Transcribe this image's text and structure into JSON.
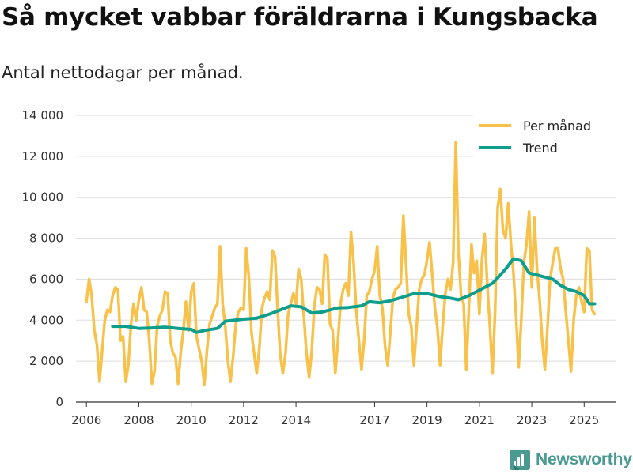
{
  "title": "Så mycket vabbar föräldrarna i Kungsbacka",
  "subtitle": "Antal nettodagar per månad.",
  "brand": "Newsworthy",
  "colors": {
    "per_month": "#f8c14a",
    "trend": "#0e9e8c",
    "grid": "#dddddd",
    "brand": "#4a9a92"
  },
  "chart_data": {
    "type": "line",
    "title": "Så mycket vabbar föräldrarna i Kungsbacka",
    "subtitle": "Antal nettodagar per månad.",
    "xlabel": "",
    "ylabel": "",
    "xlim": [
      2005.6,
      2026.2
    ],
    "ylim": [
      0,
      14000
    ],
    "grid": true,
    "legend_position": "top-right",
    "y_ticks": [
      {
        "value": 0,
        "label": "0"
      },
      {
        "value": 2000,
        "label": "2 000"
      },
      {
        "value": 4000,
        "label": "4 000"
      },
      {
        "value": 6000,
        "label": "6 000"
      },
      {
        "value": 8000,
        "label": "8 000"
      },
      {
        "value": 10000,
        "label": "10 000"
      },
      {
        "value": 12000,
        "label": "12 000"
      },
      {
        "value": 14000,
        "label": "14 000"
      }
    ],
    "x_ticks": [
      {
        "value": 2006,
        "label": "2006"
      },
      {
        "value": 2008,
        "label": "2008"
      },
      {
        "value": 2010,
        "label": "2010"
      },
      {
        "value": 2012,
        "label": "2012"
      },
      {
        "value": 2014,
        "label": "2014"
      },
      {
        "value": 2017,
        "label": "2017"
      },
      {
        "value": 2019,
        "label": "2019"
      },
      {
        "value": 2021,
        "label": "2021"
      },
      {
        "value": 2023,
        "label": "2023"
      },
      {
        "value": 2025,
        "label": "2025"
      }
    ],
    "series": [
      {
        "name": "Per månad",
        "color": "#f8c14a",
        "points": [
          [
            2006.0,
            4900
          ],
          [
            2006.1,
            6000
          ],
          [
            2006.2,
            5200
          ],
          [
            2006.3,
            3500
          ],
          [
            2006.4,
            2800
          ],
          [
            2006.5,
            1000
          ],
          [
            2006.6,
            2500
          ],
          [
            2006.7,
            4000
          ],
          [
            2006.8,
            4500
          ],
          [
            2006.9,
            4400
          ],
          [
            2007.0,
            5200
          ],
          [
            2007.1,
            5600
          ],
          [
            2007.2,
            5500
          ],
          [
            2007.3,
            3000
          ],
          [
            2007.4,
            3200
          ],
          [
            2007.5,
            1000
          ],
          [
            2007.6,
            1800
          ],
          [
            2007.7,
            3800
          ],
          [
            2007.8,
            4800
          ],
          [
            2007.9,
            4000
          ],
          [
            2008.0,
            5000
          ],
          [
            2008.1,
            5600
          ],
          [
            2008.2,
            4500
          ],
          [
            2008.3,
            4400
          ],
          [
            2008.4,
            3000
          ],
          [
            2008.5,
            900
          ],
          [
            2008.6,
            1500
          ],
          [
            2008.7,
            3700
          ],
          [
            2008.8,
            4200
          ],
          [
            2008.9,
            4500
          ],
          [
            2009.0,
            5400
          ],
          [
            2009.1,
            5300
          ],
          [
            2009.2,
            3000
          ],
          [
            2009.3,
            2400
          ],
          [
            2009.4,
            2200
          ],
          [
            2009.5,
            900
          ],
          [
            2009.6,
            2400
          ],
          [
            2009.7,
            3500
          ],
          [
            2009.8,
            4900
          ],
          [
            2009.9,
            3500
          ],
          [
            2010.0,
            5400
          ],
          [
            2010.1,
            5800
          ],
          [
            2010.2,
            3200
          ],
          [
            2010.3,
            2600
          ],
          [
            2010.4,
            2000
          ],
          [
            2010.5,
            850
          ],
          [
            2010.6,
            2500
          ],
          [
            2010.7,
            3800
          ],
          [
            2010.8,
            4200
          ],
          [
            2010.9,
            4600
          ],
          [
            2011.0,
            4800
          ],
          [
            2011.1,
            7600
          ],
          [
            2011.2,
            4800
          ],
          [
            2011.3,
            3700
          ],
          [
            2011.4,
            2000
          ],
          [
            2011.5,
            1000
          ],
          [
            2011.6,
            2200
          ],
          [
            2011.7,
            3800
          ],
          [
            2011.8,
            4400
          ],
          [
            2011.9,
            4600
          ],
          [
            2012.0,
            4500
          ],
          [
            2012.1,
            7500
          ],
          [
            2012.2,
            6100
          ],
          [
            2012.3,
            3400
          ],
          [
            2012.4,
            2400
          ],
          [
            2012.5,
            1400
          ],
          [
            2012.6,
            2600
          ],
          [
            2012.7,
            4600
          ],
          [
            2012.8,
            5100
          ],
          [
            2012.9,
            5400
          ],
          [
            2013.0,
            5000
          ],
          [
            2013.1,
            7400
          ],
          [
            2013.2,
            7100
          ],
          [
            2013.3,
            4500
          ],
          [
            2013.4,
            2300
          ],
          [
            2013.5,
            1400
          ],
          [
            2013.6,
            2400
          ],
          [
            2013.7,
            4300
          ],
          [
            2013.8,
            4800
          ],
          [
            2013.9,
            5300
          ],
          [
            2014.0,
            4800
          ],
          [
            2014.1,
            6500
          ],
          [
            2014.2,
            6000
          ],
          [
            2014.3,
            4200
          ],
          [
            2014.4,
            2400
          ],
          [
            2014.5,
            1200
          ],
          [
            2014.6,
            2500
          ],
          [
            2014.7,
            4700
          ],
          [
            2014.8,
            5600
          ],
          [
            2014.9,
            5500
          ],
          [
            2015.0,
            4800
          ],
          [
            2015.1,
            7200
          ],
          [
            2015.2,
            7000
          ],
          [
            2015.3,
            3800
          ],
          [
            2015.4,
            3500
          ],
          [
            2015.5,
            1400
          ],
          [
            2015.6,
            3000
          ],
          [
            2015.7,
            4800
          ],
          [
            2015.8,
            5500
          ],
          [
            2015.9,
            5800
          ],
          [
            2016.0,
            5200
          ],
          [
            2016.1,
            8300
          ],
          [
            2016.2,
            6800
          ],
          [
            2016.3,
            4500
          ],
          [
            2016.4,
            3000
          ],
          [
            2016.5,
            1600
          ],
          [
            2016.6,
            3000
          ],
          [
            2016.7,
            5200
          ],
          [
            2016.8,
            5400
          ],
          [
            2016.9,
            6000
          ],
          [
            2017.0,
            6400
          ],
          [
            2017.1,
            7600
          ],
          [
            2017.2,
            5200
          ],
          [
            2017.3,
            4600
          ],
          [
            2017.4,
            2700
          ],
          [
            2017.5,
            1800
          ],
          [
            2017.6,
            3400
          ],
          [
            2017.7,
            5100
          ],
          [
            2017.8,
            5500
          ],
          [
            2017.9,
            5600
          ],
          [
            2018.0,
            5800
          ],
          [
            2018.1,
            9100
          ],
          [
            2018.2,
            6800
          ],
          [
            2018.3,
            4300
          ],
          [
            2018.4,
            3700
          ],
          [
            2018.5,
            1800
          ],
          [
            2018.6,
            3600
          ],
          [
            2018.7,
            5500
          ],
          [
            2018.8,
            6000
          ],
          [
            2018.9,
            6200
          ],
          [
            2019.0,
            6900
          ],
          [
            2019.1,
            7800
          ],
          [
            2019.2,
            6200
          ],
          [
            2019.3,
            4600
          ],
          [
            2019.4,
            3600
          ],
          [
            2019.5,
            1800
          ],
          [
            2019.6,
            3700
          ],
          [
            2019.7,
            5300
          ],
          [
            2019.8,
            6000
          ],
          [
            2019.9,
            5500
          ],
          [
            2020.0,
            6800
          ],
          [
            2020.1,
            12700
          ],
          [
            2020.2,
            7300
          ],
          [
            2020.3,
            5200
          ],
          [
            2020.4,
            4800
          ],
          [
            2020.5,
            1600
          ],
          [
            2020.6,
            4600
          ],
          [
            2020.7,
            7700
          ],
          [
            2020.8,
            6300
          ],
          [
            2020.9,
            6900
          ],
          [
            2021.0,
            4300
          ],
          [
            2021.1,
            7000
          ],
          [
            2021.2,
            8200
          ],
          [
            2021.3,
            5800
          ],
          [
            2021.4,
            3700
          ],
          [
            2021.5,
            1400
          ],
          [
            2021.6,
            4400
          ],
          [
            2021.7,
            9500
          ],
          [
            2021.8,
            10400
          ],
          [
            2021.9,
            8400
          ],
          [
            2022.0,
            8000
          ],
          [
            2022.1,
            9700
          ],
          [
            2022.2,
            7800
          ],
          [
            2022.3,
            6300
          ],
          [
            2022.4,
            4200
          ],
          [
            2022.5,
            1700
          ],
          [
            2022.6,
            4000
          ],
          [
            2022.7,
            6800
          ],
          [
            2022.8,
            7700
          ],
          [
            2022.9,
            9300
          ],
          [
            2023.0,
            5600
          ],
          [
            2023.1,
            9000
          ],
          [
            2023.2,
            6500
          ],
          [
            2023.3,
            5000
          ],
          [
            2023.4,
            3000
          ],
          [
            2023.5,
            1600
          ],
          [
            2023.6,
            3600
          ],
          [
            2023.7,
            6000
          ],
          [
            2023.8,
            6800
          ],
          [
            2023.9,
            7500
          ],
          [
            2024.0,
            7500
          ],
          [
            2024.1,
            6500
          ],
          [
            2024.2,
            6000
          ],
          [
            2024.3,
            4400
          ],
          [
            2024.4,
            3000
          ],
          [
            2024.5,
            1500
          ],
          [
            2024.6,
            4000
          ],
          [
            2024.7,
            5200
          ],
          [
            2024.8,
            5600
          ],
          [
            2024.9,
            4900
          ],
          [
            2025.0,
            4400
          ],
          [
            2025.1,
            7500
          ],
          [
            2025.2,
            7400
          ],
          [
            2025.3,
            4500
          ],
          [
            2025.4,
            4300
          ]
        ]
      },
      {
        "name": "Trend",
        "color": "#0e9e8c",
        "points": [
          [
            2007.0,
            3700
          ],
          [
            2007.5,
            3700
          ],
          [
            2008.0,
            3600
          ],
          [
            2008.5,
            3620
          ],
          [
            2009.0,
            3660
          ],
          [
            2009.5,
            3600
          ],
          [
            2010.0,
            3550
          ],
          [
            2010.2,
            3400
          ],
          [
            2010.5,
            3500
          ],
          [
            2011.0,
            3600
          ],
          [
            2011.3,
            3950
          ],
          [
            2012.0,
            4050
          ],
          [
            2012.5,
            4100
          ],
          [
            2013.0,
            4300
          ],
          [
            2013.5,
            4550
          ],
          [
            2013.8,
            4700
          ],
          [
            2014.2,
            4650
          ],
          [
            2014.6,
            4350
          ],
          [
            2015.0,
            4400
          ],
          [
            2015.3,
            4500
          ],
          [
            2015.6,
            4600
          ],
          [
            2016.0,
            4620
          ],
          [
            2016.5,
            4700
          ],
          [
            2016.8,
            4900
          ],
          [
            2017.2,
            4850
          ],
          [
            2017.6,
            4950
          ],
          [
            2018.0,
            5100
          ],
          [
            2018.5,
            5300
          ],
          [
            2019.0,
            5300
          ],
          [
            2019.5,
            5150
          ],
          [
            2019.8,
            5100
          ],
          [
            2020.2,
            5000
          ],
          [
            2020.6,
            5200
          ],
          [
            2020.9,
            5400
          ],
          [
            2021.2,
            5600
          ],
          [
            2021.5,
            5800
          ],
          [
            2021.8,
            6200
          ],
          [
            2022.0,
            6500
          ],
          [
            2022.3,
            7000
          ],
          [
            2022.6,
            6900
          ],
          [
            2022.9,
            6300
          ],
          [
            2023.2,
            6200
          ],
          [
            2023.5,
            6100
          ],
          [
            2023.8,
            6000
          ],
          [
            2024.1,
            5700
          ],
          [
            2024.4,
            5500
          ],
          [
            2024.7,
            5400
          ],
          [
            2025.0,
            5200
          ],
          [
            2025.2,
            4800
          ],
          [
            2025.4,
            4800
          ]
        ]
      }
    ]
  }
}
